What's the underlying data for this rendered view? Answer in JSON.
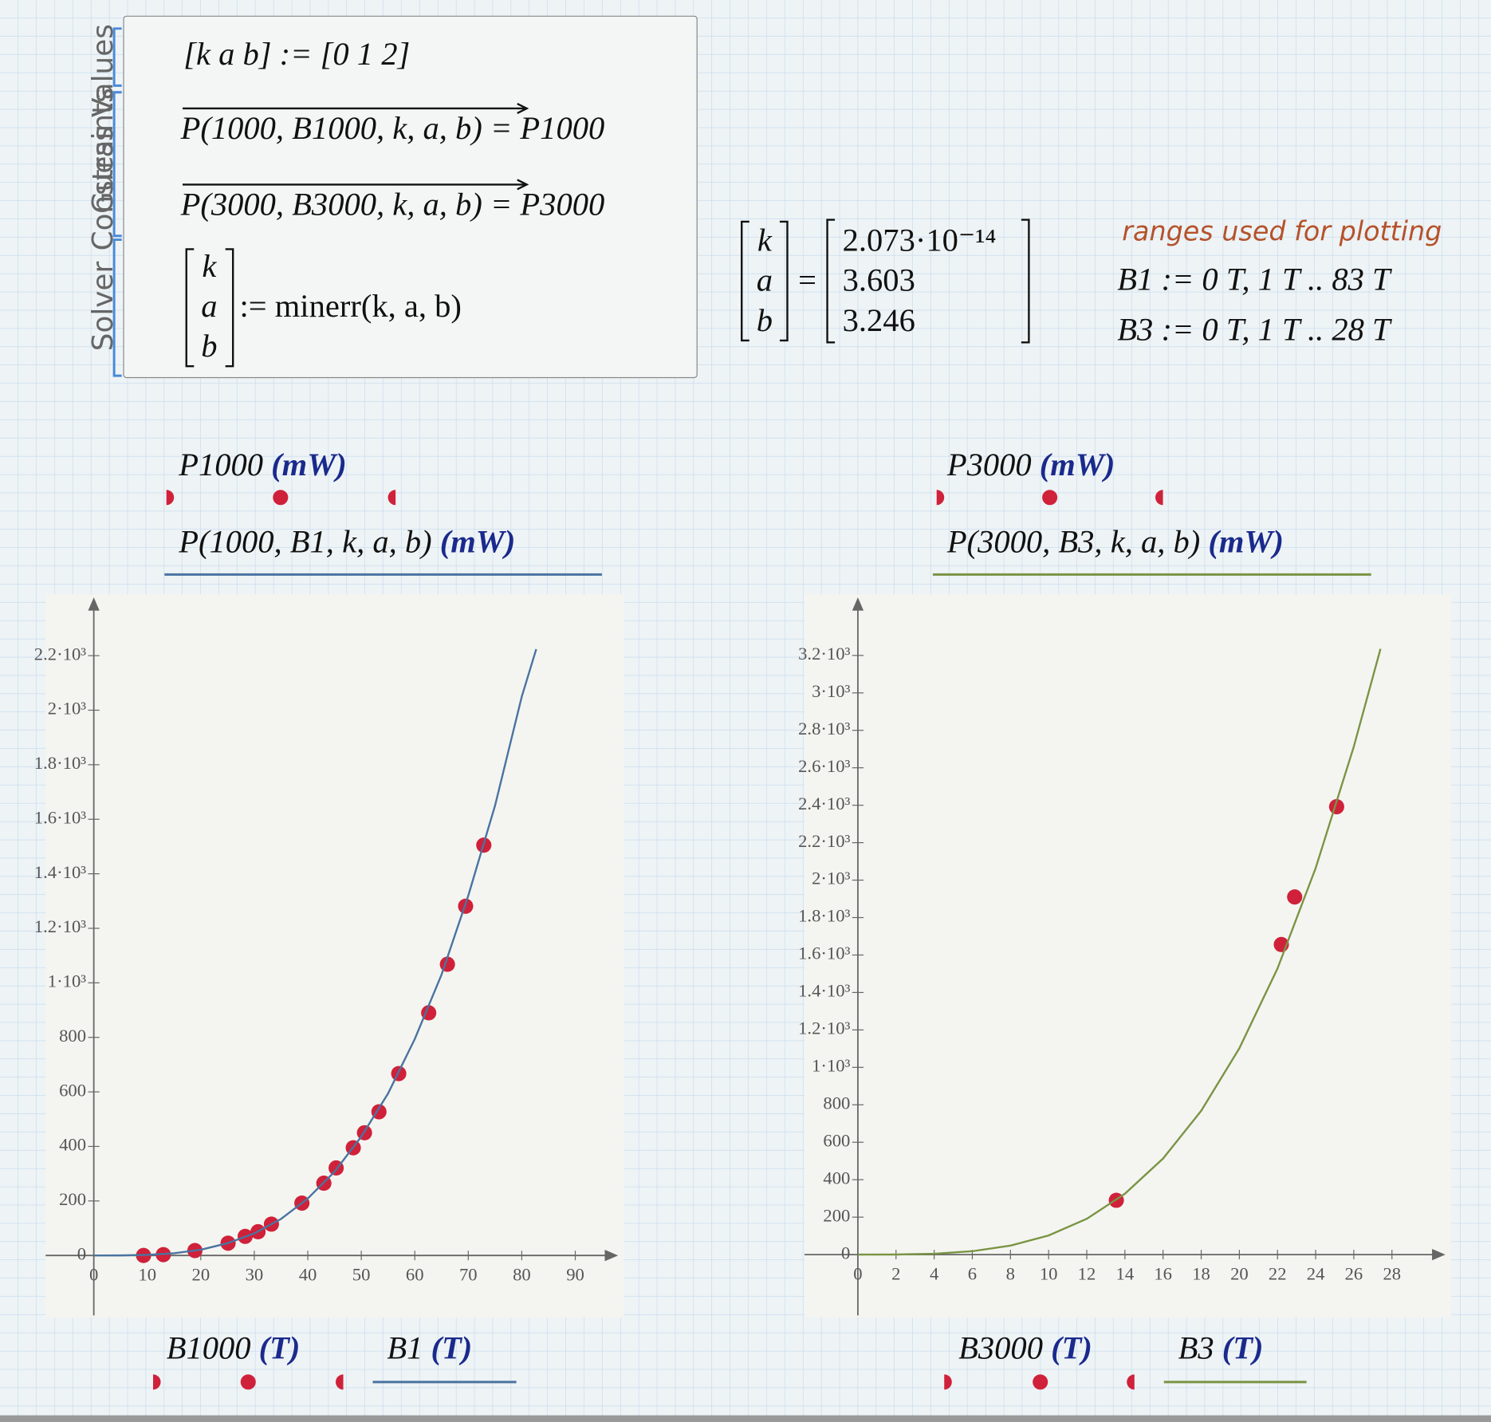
{
  "worksheet": {
    "region_labels": [
      "Guess Values",
      "Constraints",
      "Solver"
    ],
    "guess": "[k  a  b] := [0  1  2]",
    "constraints": [
      "P(1000, B1000, k, a, b) = P1000",
      "P(3000, B3000, k, a, b) = P3000"
    ],
    "solver": {
      "vector": [
        "k",
        "a",
        "b"
      ],
      "expr": ":= minerr(k, a, b)"
    },
    "result": {
      "names": [
        "k",
        "a",
        "b"
      ],
      "equals": "=",
      "values": [
        "2.073·10⁻¹⁴",
        "3.603",
        "3.246"
      ]
    },
    "note": "ranges used for plotting",
    "ranges": [
      "B1 := 0 T, 1 T .. 83 T",
      "B3 := 0 T, 1 T .. 28 T"
    ]
  },
  "chart_data": [
    {
      "type": "xy",
      "xlim": [
        -9,
        98
      ],
      "ylim": [
        -220,
        2400
      ],
      "xticks": [
        0,
        10,
        20,
        30,
        40,
        50,
        60,
        70,
        80,
        90
      ],
      "yticks": [
        0,
        200,
        400,
        600,
        800,
        {
          "value": 1000,
          "label": "1·10³"
        },
        {
          "value": 1200,
          "label": "1.2·10³"
        },
        {
          "value": 1400,
          "label": "1.4·10³"
        },
        {
          "value": 1600,
          "label": "1.6·10³"
        },
        {
          "value": 1800,
          "label": "1.8·10³"
        },
        {
          "value": 2000,
          "label": "2·10³"
        },
        {
          "value": 2200,
          "label": "2.2·10³"
        }
      ],
      "series": [
        {
          "name": "P1000",
          "unit": "(mW)",
          "x_name": "B1000",
          "x_unit": "(T)",
          "type": "scatter",
          "color": "#d0213a",
          "x": [
            9.3,
            13,
            18.9,
            25.1,
            28.3,
            30.7,
            33.2,
            38.9,
            43,
            45.3,
            48.5,
            50.6,
            53.3,
            57,
            62.6,
            66.1,
            69.5,
            72.9
          ],
          "values": [
            0,
            3,
            18,
            45,
            70,
            87,
            115,
            192,
            265,
            321,
            395,
            450,
            527,
            667,
            890,
            1068,
            1281,
            1505
          ]
        },
        {
          "name": "P(1000, B1, k, a, b)",
          "unit": "(mW)",
          "x_name": "B1",
          "x_unit": "(T)",
          "type": "line",
          "color": "#4a73a0",
          "x": [
            0,
            5,
            10,
            15,
            20,
            25,
            30,
            35,
            40,
            45,
            50,
            55,
            60,
            65,
            70,
            75,
            80,
            82.7
          ],
          "values": [
            0,
            0.2,
            2.2,
            8,
            21,
            45,
            81,
            134,
            209,
            307,
            436,
            594,
            794,
            1030,
            1320,
            1650,
            2050,
            2224
          ]
        }
      ]
    },
    {
      "type": "xy",
      "xlim": [
        -2.8,
        30.8
      ],
      "ylim": [
        -325,
        3490
      ],
      "xticks": [
        0,
        2,
        4,
        6,
        8,
        10,
        12,
        14,
        16,
        18,
        20,
        22,
        24,
        26,
        28
      ],
      "yticks": [
        0,
        200,
        400,
        600,
        800,
        {
          "value": 1000,
          "label": "1·10³"
        },
        {
          "value": 1200,
          "label": "1.2·10³"
        },
        {
          "value": 1400,
          "label": "1.4·10³"
        },
        {
          "value": 1600,
          "label": "1.6·10³"
        },
        {
          "value": 1800,
          "label": "1.8·10³"
        },
        {
          "value": 2000,
          "label": "2·10³"
        },
        {
          "value": 2200,
          "label": "2.2·10³"
        },
        {
          "value": 2400,
          "label": "2.4·10³"
        },
        {
          "value": 2600,
          "label": "2.6·10³"
        },
        {
          "value": 2800,
          "label": "2.8·10³"
        },
        {
          "value": 3000,
          "label": "3·10³"
        },
        {
          "value": 3200,
          "label": "3.2·10³"
        }
      ],
      "series": [
        {
          "name": "P3000",
          "unit": "(mW)",
          "x_name": "B3000",
          "x_unit": "(T)",
          "type": "scatter",
          "color": "#d0213a",
          "x": [
            13.55,
            22.2,
            22.9,
            25.1
          ],
          "values": [
            290,
            1656,
            1910,
            2392
          ]
        },
        {
          "name": "P(3000, B3, k, a, b)",
          "unit": "(mW)",
          "x_name": "B3",
          "x_unit": "(T)",
          "type": "line",
          "color": "#7a9444",
          "x": [
            0,
            2,
            4,
            6,
            8,
            10,
            12,
            14,
            16,
            18,
            20,
            22,
            24,
            26,
            27.4
          ],
          "values": [
            0,
            0.4,
            4.4,
            18,
            48,
            102,
            191,
            325,
            513,
            768,
            1102,
            1528,
            2064,
            2713,
            3235
          ]
        }
      ]
    }
  ]
}
